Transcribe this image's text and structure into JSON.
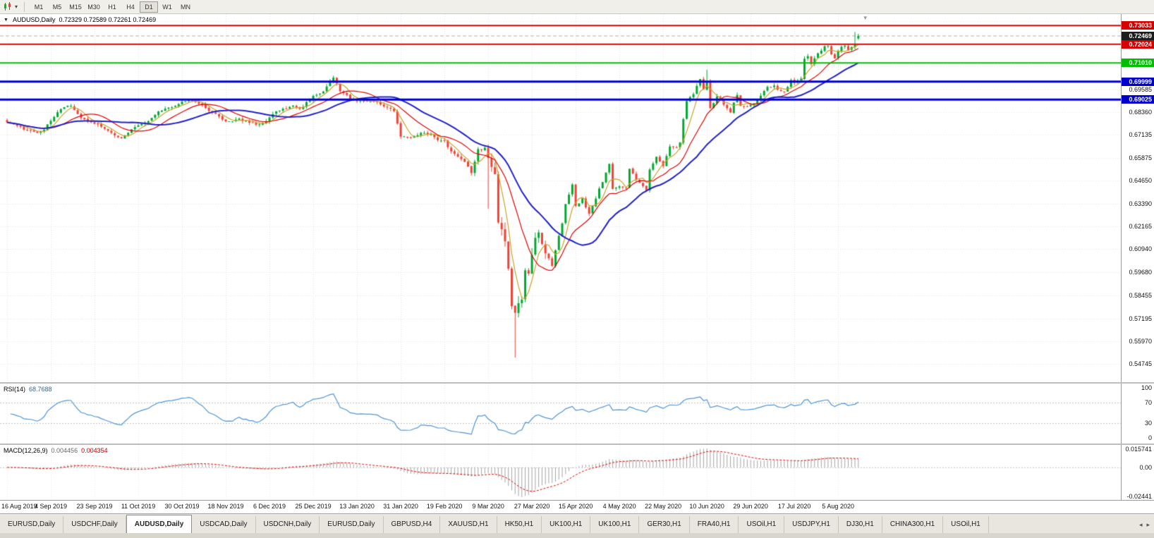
{
  "toolbar": {
    "timeframes": [
      "M1",
      "M5",
      "M15",
      "M30",
      "H1",
      "H4",
      "D1",
      "W1",
      "MN"
    ],
    "active": "D1"
  },
  "chart": {
    "title": "AUDUSD,Daily",
    "ohlc": "0.72329 0.72589 0.72261 0.72469",
    "price_axis_labels": [
      "0.69585",
      "0.68360",
      "0.67135",
      "0.65875",
      "0.64650",
      "0.63390",
      "0.62165",
      "0.60940",
      "0.59680",
      "0.58455",
      "0.57195",
      "0.55970",
      "0.54745"
    ],
    "level_tags": [
      {
        "label": "0.73033",
        "price": 0.73033,
        "color": "#D60000",
        "line_width": 2
      },
      {
        "label": "0.72024",
        "price": 0.72024,
        "color": "#D60000",
        "line_width": 2
      },
      {
        "label": "0.71010",
        "price": 0.7101,
        "color": "#00BE00",
        "line_width": 2
      },
      {
        "label": "0.69999",
        "price": 0.69999,
        "color": "#0000CC",
        "line_width": 3
      },
      {
        "label": "0.69025",
        "price": 0.69025,
        "color": "#0000CC",
        "line_width": 3
      }
    ],
    "bid_tag": {
      "label": "0.72469",
      "price": 0.72469,
      "color": "#1C1C1C"
    }
  },
  "rsi": {
    "label": "RSI(14)",
    "value": "68.7688",
    "axis_labels": [
      "100",
      "70",
      "30",
      "0"
    ]
  },
  "macd": {
    "label": "MACD(12,26,9)",
    "value_main": "0.004456",
    "value_signal": "0.004354",
    "axis_labels": [
      "0.015741",
      "0.00",
      "-0.02441"
    ]
  },
  "time_axis": {
    "labels": [
      "16 Aug 2019",
      "4 Sep 2019",
      "23 Sep 2019",
      "11 Oct 2019",
      "30 Oct 2019",
      "18 Nov 2019",
      "6 Dec 2019",
      "25 Dec 2019",
      "13 Jan 2020",
      "31 Jan 2020",
      "19 Feb 2020",
      "9 Mar 2020",
      "27 Mar 2020",
      "15 Apr 2020",
      "4 May 2020",
      "22 May 2020",
      "10 Jun 2020",
      "29 Jun 2020",
      "17 Jul 2020",
      "5 Aug 2020"
    ]
  },
  "tabs": {
    "items": [
      "EURUSD,Daily",
      "USDCHF,Daily",
      "AUDUSD,Daily",
      "USDCAD,Daily",
      "USDCNH,Daily",
      "EURUSD,Daily",
      "GBPUSD,H4",
      "XAUUSD,H1",
      "HK50,H1",
      "UK100,H1",
      "UK100,H1",
      "GER30,H1",
      "FRA40,H1",
      "USOil,H1",
      "USDJPY,H1",
      "DJ30,H1",
      "CHINA300,H1",
      "USOil,H1"
    ],
    "active_index": 2
  },
  "chart_data": {
    "type": "candlestick",
    "symbol": "AUDUSD",
    "period": "Daily",
    "visible_range": {
      "start": "16 Aug 2019",
      "end": "13 Aug 2020",
      "bars": 254
    },
    "date_tick_step": 13,
    "y_range": [
      0.5375,
      0.7365
    ],
    "last_bar": {
      "open": 0.72329,
      "high": 0.72589,
      "low": 0.72261,
      "close": 0.72469
    },
    "key_points": {
      "covid_crash_low": 0.5508,
      "dec_2019_high": 0.7032,
      "jun_2020_high": 0.7064
    },
    "levels": [
      0.73033,
      0.72024,
      0.7101,
      0.69999,
      0.69025
    ],
    "close_anchors": [
      [
        0,
        0.678
      ],
      [
        3,
        0.6762
      ],
      [
        6,
        0.6735
      ],
      [
        9,
        0.6722
      ],
      [
        11,
        0.6742
      ],
      [
        13,
        0.679
      ],
      [
        16,
        0.685
      ],
      [
        19,
        0.6872
      ],
      [
        22,
        0.68
      ],
      [
        24,
        0.6788
      ],
      [
        26,
        0.6772
      ],
      [
        29,
        0.6748
      ],
      [
        32,
        0.6705
      ],
      [
        34,
        0.6698
      ],
      [
        37,
        0.6742
      ],
      [
        39,
        0.6768
      ],
      [
        42,
        0.6788
      ],
      [
        45,
        0.6838
      ],
      [
        48,
        0.6858
      ],
      [
        52,
        0.6888
      ],
      [
        55,
        0.6902
      ],
      [
        58,
        0.6868
      ],
      [
        61,
        0.6835
      ],
      [
        64,
        0.6795
      ],
      [
        66,
        0.6782
      ],
      [
        69,
        0.6798
      ],
      [
        72,
        0.6778
      ],
      [
        75,
        0.6768
      ],
      [
        77,
        0.6788
      ],
      [
        79,
        0.6828
      ],
      [
        82,
        0.6852
      ],
      [
        85,
        0.6868
      ],
      [
        87,
        0.6848
      ],
      [
        89,
        0.6885
      ],
      [
        91,
        0.6918
      ],
      [
        94,
        0.6948
      ],
      [
        96,
        0.7005
      ],
      [
        97,
        0.7022
      ],
      [
        99,
        0.6952
      ],
      [
        102,
        0.6908
      ],
      [
        104,
        0.6898
      ],
      [
        107,
        0.6892
      ],
      [
        110,
        0.6885
      ],
      [
        113,
        0.6862
      ],
      [
        115,
        0.6845
      ],
      [
        117,
        0.6702
      ],
      [
        120,
        0.6695
      ],
      [
        123,
        0.6722
      ],
      [
        126,
        0.6712
      ],
      [
        128,
        0.6688
      ],
      [
        130,
        0.6678
      ],
      [
        132,
        0.6622
      ],
      [
        134,
        0.6598
      ],
      [
        136,
        0.6558
      ],
      [
        138,
        0.6515
      ],
      [
        140,
        0.6628
      ],
      [
        142,
        0.6642
      ],
      [
        143,
        0.6582
      ],
      [
        145,
        0.649
      ],
      [
        146,
        0.6232
      ],
      [
        147,
        0.6188
      ],
      [
        148,
        0.6122
      ],
      [
        149,
        0.5998
      ],
      [
        150,
        0.5792
      ],
      [
        151,
        0.5748
      ],
      [
        152,
        0.5802
      ],
      [
        153,
        0.5828
      ],
      [
        154,
        0.5968
      ],
      [
        155,
        0.5958
      ],
      [
        156,
        0.6068
      ],
      [
        157,
        0.6162
      ],
      [
        158,
        0.6172
      ],
      [
        159,
        0.6138
      ],
      [
        160,
        0.6072
      ],
      [
        162,
        0.5998
      ],
      [
        163,
        0.6088
      ],
      [
        165,
        0.6238
      ],
      [
        166,
        0.6338
      ],
      [
        168,
        0.6438
      ],
      [
        169,
        0.6322
      ],
      [
        171,
        0.6362
      ],
      [
        173,
        0.6288
      ],
      [
        175,
        0.6372
      ],
      [
        177,
        0.6462
      ],
      [
        179,
        0.6548
      ],
      [
        180,
        0.6422
      ],
      [
        182,
        0.6438
      ],
      [
        184,
        0.6418
      ],
      [
        185,
        0.6528
      ],
      [
        187,
        0.6472
      ],
      [
        190,
        0.6418
      ],
      [
        191,
        0.6522
      ],
      [
        193,
        0.6598
      ],
      [
        195,
        0.6538
      ],
      [
        197,
        0.6652
      ],
      [
        199,
        0.6638
      ],
      [
        200,
        0.6668
      ],
      [
        201,
        0.6792
      ],
      [
        202,
        0.6892
      ],
      [
        204,
        0.6938
      ],
      [
        206,
        0.7012
      ],
      [
        207,
        0.6962
      ],
      [
        208,
        0.6998
      ],
      [
        209,
        0.6852
      ],
      [
        211,
        0.6918
      ],
      [
        213,
        0.6878
      ],
      [
        215,
        0.6838
      ],
      [
        217,
        0.6928
      ],
      [
        218,
        0.6868
      ],
      [
        220,
        0.6865
      ],
      [
        222,
        0.6882
      ],
      [
        224,
        0.6928
      ],
      [
        226,
        0.6972
      ],
      [
        228,
        0.6975
      ],
      [
        230,
        0.6945
      ],
      [
        231,
        0.6942
      ],
      [
        233,
        0.7005
      ],
      [
        234,
        0.6992
      ],
      [
        236,
        0.7015
      ],
      [
        237,
        0.7128
      ],
      [
        238,
        0.7142
      ],
      [
        239,
        0.7098
      ],
      [
        241,
        0.7152
      ],
      [
        243,
        0.7188
      ],
      [
        244,
        0.7196
      ],
      [
        245,
        0.7148
      ],
      [
        246,
        0.7122
      ],
      [
        247,
        0.7162
      ],
      [
        248,
        0.7186
      ],
      [
        249,
        0.7196
      ],
      [
        250,
        0.7172
      ],
      [
        251,
        0.7186
      ],
      [
        252,
        0.7198
      ],
      [
        253,
        0.72469
      ]
    ],
    "moving_averages": [
      {
        "name": "fast",
        "period": 5,
        "color": "#C9A227"
      },
      {
        "name": "medium",
        "period": 13,
        "color": "#E00000"
      },
      {
        "name": "slow",
        "period": 26,
        "color": "#2020C8"
      }
    ],
    "rsi": {
      "period": 14,
      "last": 68.7688,
      "levels": [
        70,
        30
      ]
    },
    "macd": {
      "fast": 12,
      "slow": 26,
      "signal": 9,
      "last": 0.004456,
      "last_signal": 0.004354,
      "scale_max": 0.015741,
      "scale_min": -0.02441
    },
    "colors": {
      "up": "#00A830",
      "down": "#F24036",
      "background": "#FFFFFF"
    }
  }
}
